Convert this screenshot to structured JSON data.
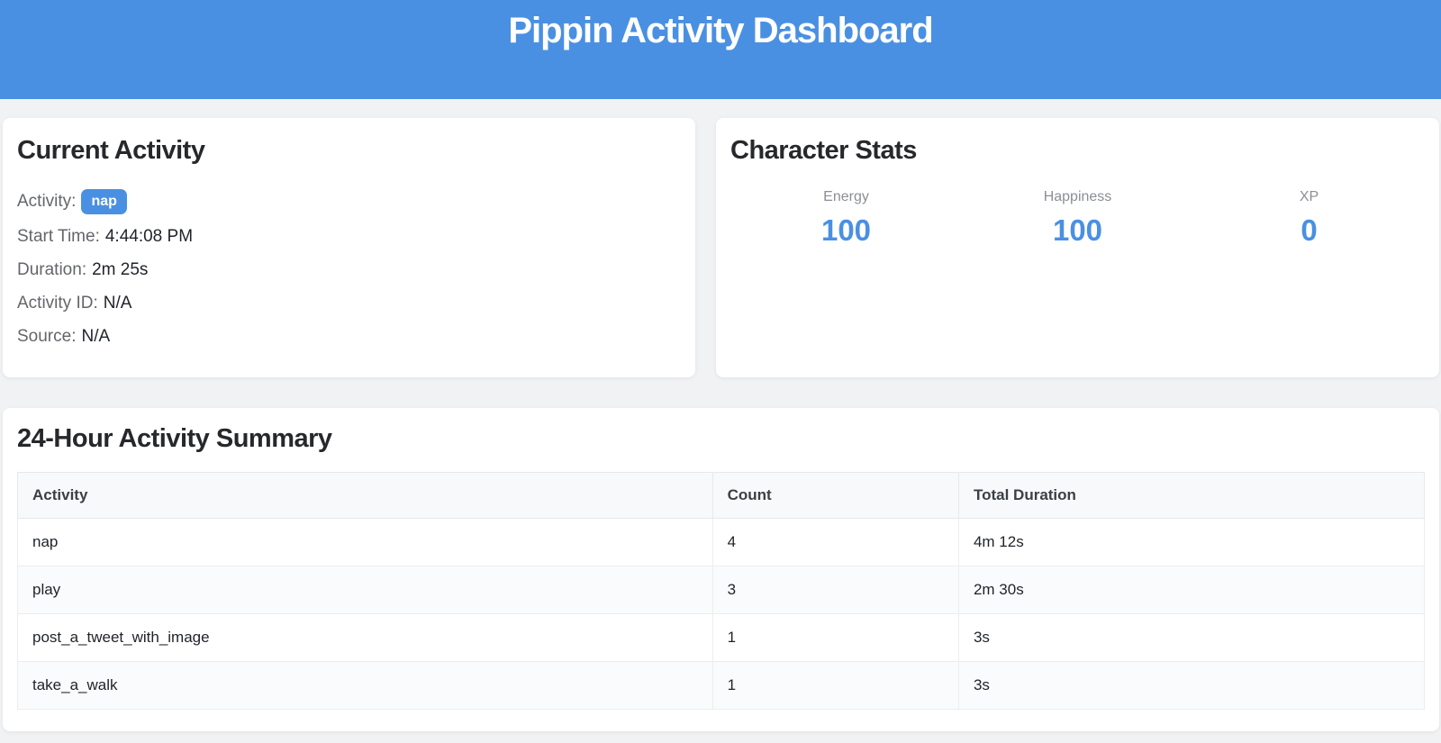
{
  "header": {
    "title": "Pippin Activity Dashboard"
  },
  "current_activity": {
    "title": "Current Activity",
    "fields": [
      {
        "label": "Activity:",
        "value": "nap"
      },
      {
        "label": "Start Time:",
        "value": "4:44:08 PM"
      },
      {
        "label": "Duration:",
        "value": "2m 25s"
      },
      {
        "label": "Activity ID:",
        "value": "N/A"
      },
      {
        "label": "Source:",
        "value": "N/A"
      }
    ]
  },
  "character_stats": {
    "title": "Character Stats",
    "stats": [
      {
        "label": "Energy",
        "value": "100"
      },
      {
        "label": "Happiness",
        "value": "100"
      },
      {
        "label": "XP",
        "value": "0"
      }
    ]
  },
  "activity_summary": {
    "title": "24-Hour Activity Summary",
    "table": {
      "columns": [
        "Activity",
        "Count",
        "Total Duration"
      ],
      "rows": [
        [
          "nap",
          "4",
          "4m 12s"
        ],
        [
          "play",
          "3",
          "2m 30s"
        ],
        [
          "post_a_tweet_with_image",
          "1",
          "3s"
        ],
        [
          "take_a_walk",
          "1",
          "3s"
        ]
      ]
    }
  },
  "colors": {
    "accent_blue": "#4a90e2",
    "page_background": "#f1f2f3",
    "table_header_bg": "#f8f9fa"
  }
}
